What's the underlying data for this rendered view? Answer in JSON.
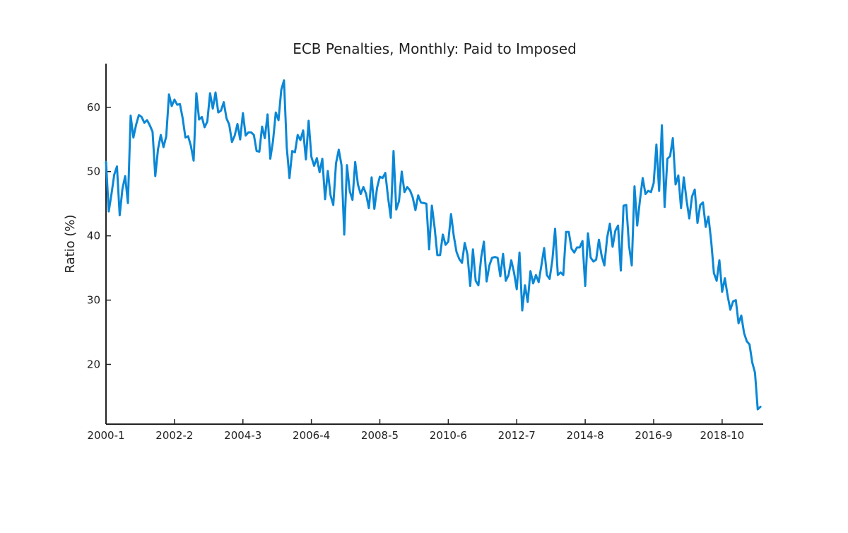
{
  "chart_data": {
    "type": "line",
    "title": "ECB Penalties, Monthly: Paid to Imposed",
    "xlabel": "",
    "ylabel": "Ratio (%)",
    "x_tick_labels": [
      "2000-1",
      "2002-2",
      "2004-3",
      "2006-4",
      "2008-5",
      "2010-6",
      "2012-7",
      "2014-8",
      "2016-9",
      "2018-10"
    ],
    "x_tick_index": [
      0,
      25,
      50,
      75,
      100,
      125,
      150,
      175,
      200,
      225
    ],
    "y_ticks": [
      20,
      30,
      40,
      50,
      60
    ],
    "ylim": [
      10.7,
      66.8
    ],
    "xlim_index": [
      0,
      240
    ],
    "grid": false,
    "legend": "none",
    "line_color": "#0a87d6",
    "series": [
      {
        "values": [
          51.5,
          43.8,
          46.5,
          49.5,
          50.8,
          43.2,
          47.3,
          49.3,
          45.1,
          58.7,
          55.3,
          57.3,
          58.8,
          58.5,
          57.6,
          58.0,
          57.2,
          56.2,
          49.3,
          53.5,
          55.7,
          53.8,
          55.5,
          62.0,
          60.2,
          61.2,
          60.4,
          60.5,
          58.3,
          55.3,
          55.5,
          54.0,
          51.7,
          62.2,
          58.1,
          58.5,
          56.9,
          57.8,
          62.2,
          59.8,
          62.3,
          59.2,
          59.5,
          60.8,
          58.3,
          57.3,
          54.6,
          55.6,
          57.4,
          55.0,
          59.1,
          55.6,
          56.1,
          56.1,
          55.7,
          53.2,
          53.1,
          57.0,
          55.2,
          58.9,
          52.0,
          54.8,
          59.2,
          58.0,
          62.7,
          64.2,
          53.8,
          49.0,
          53.2,
          53.0,
          55.7,
          54.9,
          56.4,
          51.9,
          57.9,
          52.3,
          50.9,
          52.1,
          49.9,
          52.0,
          45.7,
          50.1,
          46.3,
          44.8,
          51.3,
          53.4,
          51.0,
          40.2,
          51.0,
          47.0,
          45.6,
          51.5,
          48.0,
          46.5,
          47.6,
          46.5,
          44.3,
          49.1,
          44.2,
          47.5,
          49.2,
          49.0,
          49.8,
          46.0,
          42.8,
          53.2,
          44.1,
          45.4,
          50.0,
          46.8,
          47.6,
          47.1,
          46.0,
          44.0,
          46.3,
          45.2,
          45.1,
          45.0,
          37.9,
          44.7,
          41.3,
          37.0,
          37.0,
          40.2,
          38.6,
          39.1,
          43.4,
          40.0,
          37.5,
          36.4,
          35.8,
          38.9,
          37.1,
          32.2,
          37.9,
          33.0,
          32.3,
          36.6,
          39.1,
          32.9,
          35.4,
          36.6,
          36.7,
          36.6,
          33.7,
          37.2,
          33.0,
          33.9,
          36.2,
          34.3,
          31.7,
          37.4,
          28.4,
          32.3,
          29.7,
          34.5,
          32.6,
          33.9,
          32.8,
          35.4,
          38.1,
          33.9,
          33.3,
          36.2,
          41.1,
          33.9,
          34.3,
          33.9,
          40.6,
          40.6,
          38.0,
          37.4,
          38.2,
          38.2,
          39.2,
          32.2,
          40.4,
          36.6,
          36.0,
          36.3,
          39.4,
          36.9,
          35.4,
          39.7,
          41.9,
          38.3,
          40.8,
          41.6,
          34.6,
          44.7,
          44.8,
          38.5,
          35.4,
          47.7,
          41.6,
          45.6,
          49.0,
          46.5,
          47.0,
          46.8,
          48.2,
          54.2,
          47.0,
          57.2,
          44.5,
          52.0,
          52.4,
          55.2,
          48.0,
          49.4,
          44.3,
          49.1,
          45.6,
          42.7,
          46.1,
          47.2,
          42.0,
          44.8,
          45.2,
          41.4,
          43.0,
          39.2,
          34.2,
          33.0,
          36.2,
          31.3,
          33.4,
          30.7,
          28.5,
          29.8,
          30.0,
          26.4,
          27.6,
          24.9,
          23.6,
          23.1,
          20.3,
          18.7,
          13.0,
          13.4
        ]
      }
    ]
  }
}
